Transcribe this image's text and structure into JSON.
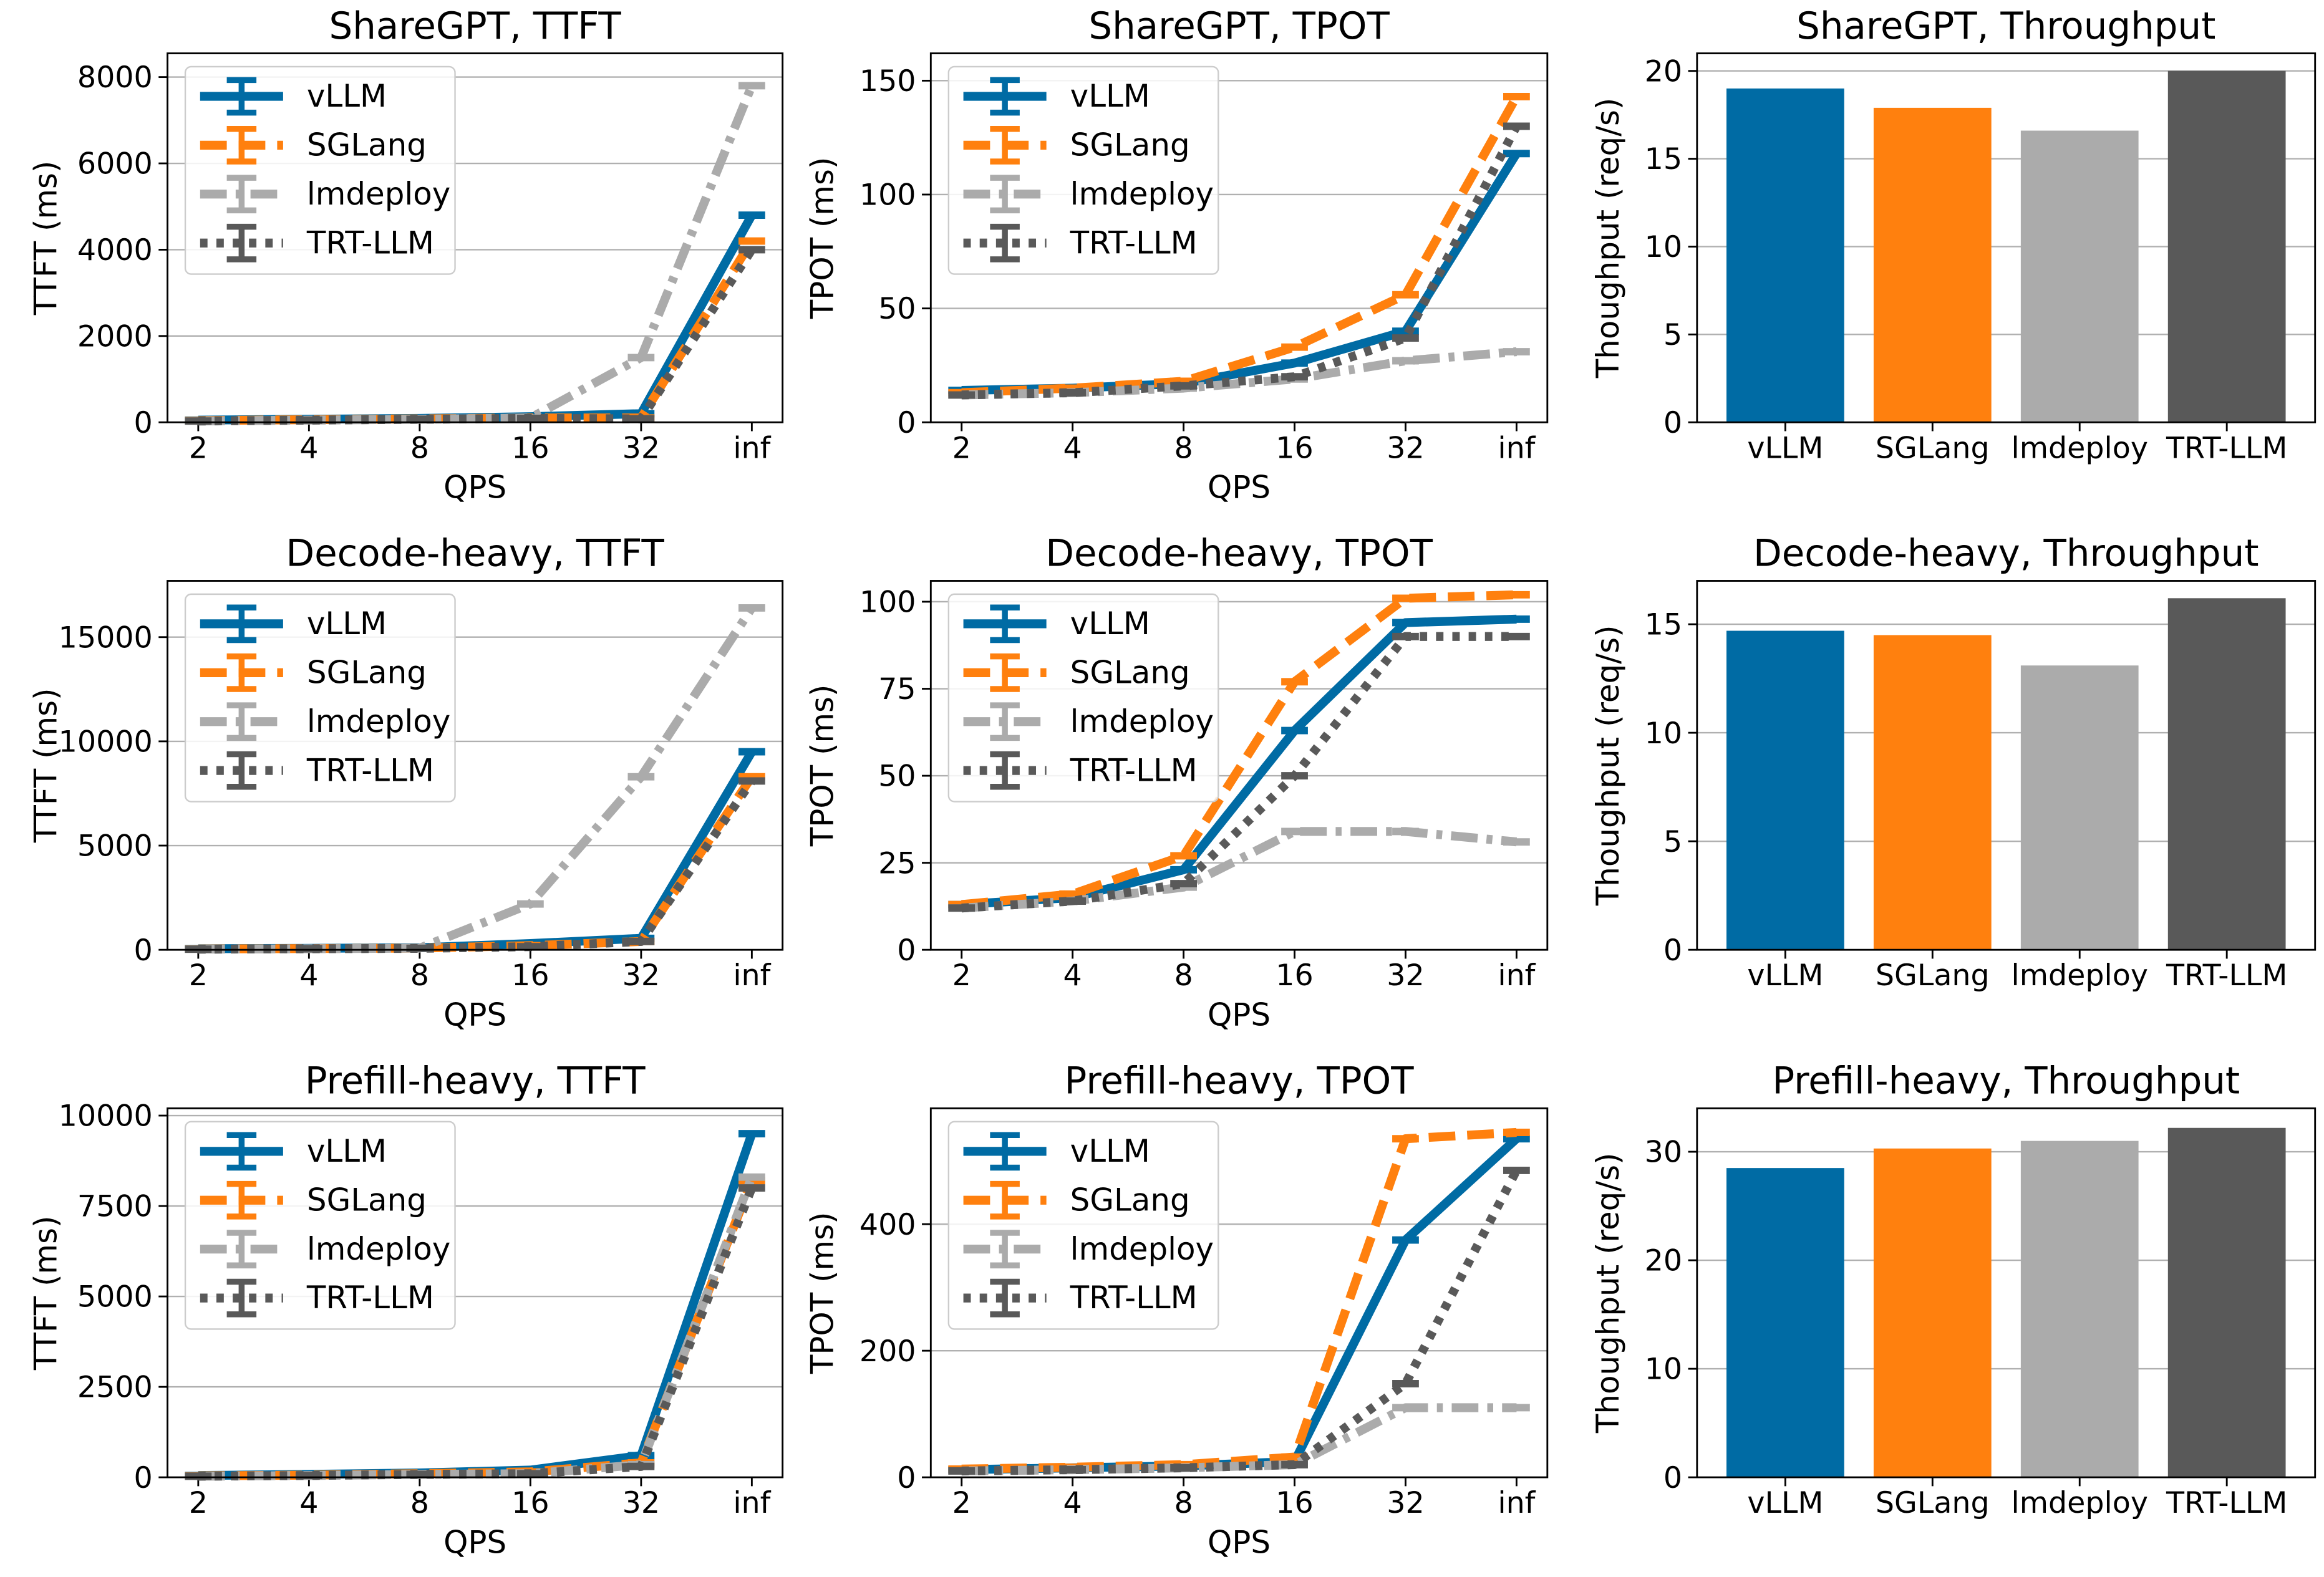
{
  "chart_data": [
    {
      "type": "line",
      "title": "ShareGPT, TTFT",
      "xlabel": "QPS",
      "ylabel": "TTFT (ms)",
      "categories": [
        "2",
        "4",
        "8",
        "16",
        "32",
        "inf"
      ],
      "ylim": [
        0,
        8550
      ],
      "yticks": [
        0,
        2000,
        4000,
        6000,
        8000
      ],
      "grid": true,
      "legend": "upper left",
      "series": [
        {
          "name": "vLLM",
          "color": "#006ba4",
          "linestyle": "solid",
          "values": [
            50,
            70,
            90,
            130,
            200,
            4800
          ]
        },
        {
          "name": "SGLang",
          "color": "#ff800e",
          "linestyle": "dashed",
          "values": [
            40,
            60,
            80,
            100,
            100,
            4200
          ]
        },
        {
          "name": "lmdeploy",
          "color": "#ababab",
          "linestyle": "dashdot",
          "values": [
            30,
            50,
            70,
            100,
            1500,
            7800
          ]
        },
        {
          "name": "TRT-LLM",
          "color": "#595959",
          "linestyle": "dotted",
          "values": [
            30,
            50,
            70,
            90,
            80,
            4000
          ]
        }
      ]
    },
    {
      "type": "line",
      "title": "ShareGPT, TPOT",
      "xlabel": "QPS",
      "ylabel": "TPOT (ms)",
      "categories": [
        "2",
        "4",
        "8",
        "16",
        "32",
        "inf"
      ],
      "ylim": [
        0,
        162
      ],
      "yticks": [
        0,
        50,
        100,
        150
      ],
      "grid": true,
      "legend": "upper left",
      "series": [
        {
          "name": "vLLM",
          "color": "#006ba4",
          "linestyle": "solid",
          "values": [
            14,
            15,
            17,
            26,
            40,
            118
          ]
        },
        {
          "name": "SGLang",
          "color": "#ff800e",
          "linestyle": "dashed",
          "values": [
            13,
            15,
            18,
            33,
            56,
            143
          ]
        },
        {
          "name": "lmdeploy",
          "color": "#ababab",
          "linestyle": "dashdot",
          "values": [
            12,
            13,
            15,
            19,
            27,
            31
          ]
        },
        {
          "name": "TRT-LLM",
          "color": "#595959",
          "linestyle": "dotted",
          "values": [
            12,
            13,
            16,
            20,
            37,
            130
          ]
        }
      ]
    },
    {
      "type": "bar",
      "title": "ShareGPT, Throughput",
      "ylabel": "Thoughput (req/s)",
      "categories": [
        "vLLM",
        "SGLang",
        "lmdeploy",
        "TRT-LLM"
      ],
      "colors": [
        "#006ba4",
        "#ff800e",
        "#ababab",
        "#595959"
      ],
      "values": [
        19,
        17.9,
        16.6,
        20
      ],
      "ylim": [
        0,
        21
      ],
      "yticks": [
        0,
        5,
        10,
        15,
        20
      ],
      "grid": true
    },
    {
      "type": "line",
      "title": "Decode-heavy, TTFT",
      "xlabel": "QPS",
      "ylabel": "TTFT (ms)",
      "categories": [
        "2",
        "4",
        "8",
        "16",
        "32",
        "inf"
      ],
      "ylim": [
        0,
        17700
      ],
      "yticks": [
        0,
        5000,
        10000,
        15000
      ],
      "grid": true,
      "legend": "upper left",
      "series": [
        {
          "name": "vLLM",
          "color": "#006ba4",
          "linestyle": "solid",
          "values": [
            50,
            70,
            100,
            300,
            550,
            9500
          ]
        },
        {
          "name": "SGLang",
          "color": "#ff800e",
          "linestyle": "dashed",
          "values": [
            40,
            60,
            80,
            200,
            400,
            8300
          ]
        },
        {
          "name": "lmdeploy",
          "color": "#ababab",
          "linestyle": "dashdot",
          "values": [
            30,
            50,
            80,
            2200,
            8300,
            16400
          ]
        },
        {
          "name": "TRT-LLM",
          "color": "#595959",
          "linestyle": "dotted",
          "values": [
            30,
            50,
            70,
            150,
            400,
            8100
          ]
        }
      ]
    },
    {
      "type": "line",
      "title": "Decode-heavy, TPOT",
      "xlabel": "QPS",
      "ylabel": "TPOT (ms)",
      "categories": [
        "2",
        "4",
        "8",
        "16",
        "32",
        "inf"
      ],
      "ylim": [
        0,
        106
      ],
      "yticks": [
        0,
        25,
        50,
        75,
        100
      ],
      "grid": true,
      "legend": "upper left",
      "series": [
        {
          "name": "vLLM",
          "color": "#006ba4",
          "linestyle": "solid",
          "values": [
            13,
            15,
            23,
            63,
            94,
            95
          ]
        },
        {
          "name": "SGLang",
          "color": "#ff800e",
          "linestyle": "dashed",
          "values": [
            13,
            16,
            27,
            77,
            101,
            102
          ]
        },
        {
          "name": "lmdeploy",
          "color": "#ababab",
          "linestyle": "dashdot",
          "values": [
            12,
            14,
            18,
            34,
            34,
            31
          ]
        },
        {
          "name": "TRT-LLM",
          "color": "#595959",
          "linestyle": "dotted",
          "values": [
            12,
            14,
            19,
            50,
            90,
            90
          ]
        }
      ]
    },
    {
      "type": "bar",
      "title": "Decode-heavy, Throughput",
      "ylabel": "Thoughput (req/s)",
      "categories": [
        "vLLM",
        "SGLang",
        "lmdeploy",
        "TRT-LLM"
      ],
      "colors": [
        "#006ba4",
        "#ff800e",
        "#ababab",
        "#595959"
      ],
      "values": [
        14.7,
        14.5,
        13.1,
        16.2
      ],
      "ylim": [
        0,
        17
      ],
      "yticks": [
        0,
        5,
        10,
        15
      ],
      "grid": true
    },
    {
      "type": "line",
      "title": "Prefill-heavy, TTFT",
      "xlabel": "QPS",
      "ylabel": "TTFT (ms)",
      "categories": [
        "2",
        "4",
        "8",
        "16",
        "32",
        "inf"
      ],
      "ylim": [
        0,
        10200
      ],
      "yticks": [
        0,
        2500,
        5000,
        7500,
        10000
      ],
      "grid": true,
      "legend": "upper left",
      "series": [
        {
          "name": "vLLM",
          "color": "#006ba4",
          "linestyle": "solid",
          "values": [
            50,
            80,
            120,
            200,
            600,
            9500
          ]
        },
        {
          "name": "SGLang",
          "color": "#ff800e",
          "linestyle": "dashed",
          "values": [
            40,
            60,
            100,
            150,
            400,
            8200
          ]
        },
        {
          "name": "lmdeploy",
          "color": "#ababab",
          "linestyle": "dashdot",
          "values": [
            30,
            50,
            80,
            100,
            350,
            8300
          ]
        },
        {
          "name": "TRT-LLM",
          "color": "#595959",
          "linestyle": "dotted",
          "values": [
            30,
            50,
            80,
            100,
            300,
            8000
          ]
        }
      ]
    },
    {
      "type": "line",
      "title": "Prefill-heavy, TPOT",
      "xlabel": "QPS",
      "ylabel": "TPOT (ms)",
      "categories": [
        "2",
        "4",
        "8",
        "16",
        "32",
        "inf"
      ],
      "ylim": [
        0,
        583
      ],
      "yticks": [
        0,
        200,
        400
      ],
      "grid": true,
      "legend": "upper left",
      "series": [
        {
          "name": "vLLM",
          "color": "#006ba4",
          "linestyle": "solid",
          "values": [
            12,
            15,
            18,
            25,
            375,
            535
          ]
        },
        {
          "name": "SGLang",
          "color": "#ff800e",
          "linestyle": "dashed",
          "values": [
            13,
            16,
            20,
            32,
            535,
            545
          ]
        },
        {
          "name": "lmdeploy",
          "color": "#ababab",
          "linestyle": "dashdot",
          "values": [
            10,
            12,
            15,
            20,
            110,
            110
          ]
        },
        {
          "name": "TRT-LLM",
          "color": "#595959",
          "linestyle": "dotted",
          "values": [
            10,
            12,
            15,
            20,
            148,
            485
          ]
        }
      ]
    },
    {
      "type": "bar",
      "title": "Prefill-heavy, Throughput",
      "ylabel": "Thoughput (req/s)",
      "categories": [
        "vLLM",
        "SGLang",
        "lmdeploy",
        "TRT-LLM"
      ],
      "colors": [
        "#006ba4",
        "#ff800e",
        "#ababab",
        "#595959"
      ],
      "values": [
        28.5,
        30.3,
        31,
        32.2
      ],
      "ylim": [
        0,
        34
      ],
      "yticks": [
        0,
        10,
        20,
        30
      ],
      "grid": true
    }
  ]
}
